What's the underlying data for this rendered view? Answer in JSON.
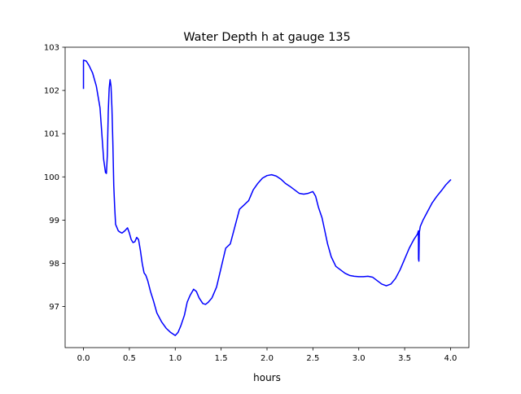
{
  "chart_data": {
    "type": "line",
    "title": "Water Depth h at gauge 135",
    "xlabel": "hours",
    "ylabel": "",
    "xlim": [
      -0.2,
      4.2
    ],
    "ylim": [
      96.05,
      103.0
    ],
    "xticks": [
      0.0,
      0.5,
      1.0,
      1.5,
      2.0,
      2.5,
      3.0,
      3.5,
      4.0
    ],
    "xtick_labels": [
      "0.0",
      "0.5",
      "1.0",
      "1.5",
      "2.0",
      "2.5",
      "3.0",
      "3.5",
      "4.0"
    ],
    "yticks": [
      97,
      98,
      99,
      100,
      101,
      102,
      103
    ],
    "ytick_labels": [
      "97",
      "98",
      "99",
      "100",
      "101",
      "102",
      "103"
    ],
    "grid": false,
    "series": [
      {
        "color": "#0000ff",
        "x": [
          0.0,
          0.0,
          0.03,
          0.06,
          0.1,
          0.14,
          0.18,
          0.2,
          0.22,
          0.24,
          0.25,
          0.26,
          0.27,
          0.28,
          0.29,
          0.3,
          0.31,
          0.32,
          0.33,
          0.34,
          0.35,
          0.36,
          0.37,
          0.38,
          0.4,
          0.42,
          0.45,
          0.48,
          0.5,
          0.52,
          0.54,
          0.56,
          0.58,
          0.6,
          0.62,
          0.64,
          0.66,
          0.68,
          0.7,
          0.73,
          0.76,
          0.8,
          0.85,
          0.9,
          0.95,
          1.0,
          1.03,
          1.06,
          1.1,
          1.13,
          1.16,
          1.2,
          1.23,
          1.26,
          1.3,
          1.33,
          1.36,
          1.4,
          1.45,
          1.5,
          1.55,
          1.6,
          1.65,
          1.7,
          1.75,
          1.8,
          1.85,
          1.9,
          1.95,
          2.0,
          2.05,
          2.1,
          2.15,
          2.2,
          2.25,
          2.3,
          2.35,
          2.4,
          2.45,
          2.5,
          2.53,
          2.56,
          2.6,
          2.63,
          2.66,
          2.7,
          2.75,
          2.8,
          2.85,
          2.9,
          2.95,
          3.0,
          3.05,
          3.1,
          3.15,
          3.2,
          3.25,
          3.3,
          3.35,
          3.4,
          3.45,
          3.5,
          3.55,
          3.6,
          3.64,
          3.65,
          3.651,
          3.655,
          3.66,
          3.67,
          3.7,
          3.75,
          3.8,
          3.85,
          3.9,
          3.95,
          4.0
        ],
        "y": [
          102.05,
          102.7,
          102.68,
          102.58,
          102.4,
          102.1,
          101.6,
          101.0,
          100.4,
          100.1,
          100.08,
          100.5,
          101.5,
          102.05,
          102.25,
          102.1,
          101.6,
          100.8,
          99.8,
          99.3,
          98.9,
          98.85,
          98.8,
          98.75,
          98.72,
          98.7,
          98.75,
          98.82,
          98.7,
          98.55,
          98.48,
          98.5,
          98.6,
          98.55,
          98.3,
          98.0,
          97.78,
          97.72,
          97.6,
          97.35,
          97.15,
          96.85,
          96.65,
          96.5,
          96.4,
          96.33,
          96.4,
          96.55,
          96.8,
          97.1,
          97.25,
          97.4,
          97.35,
          97.2,
          97.07,
          97.05,
          97.1,
          97.2,
          97.45,
          97.9,
          98.35,
          98.45,
          98.85,
          99.25,
          99.35,
          99.45,
          99.7,
          99.85,
          99.97,
          100.03,
          100.05,
          100.02,
          99.95,
          99.85,
          99.78,
          99.7,
          99.62,
          99.6,
          99.62,
          99.66,
          99.55,
          99.3,
          99.05,
          98.75,
          98.45,
          98.15,
          97.93,
          97.85,
          97.77,
          97.72,
          97.7,
          97.69,
          97.69,
          97.7,
          97.68,
          97.6,
          97.52,
          97.48,
          97.52,
          97.65,
          97.85,
          98.1,
          98.35,
          98.55,
          98.68,
          98.75,
          98.1,
          98.05,
          98.72,
          98.85,
          99.0,
          99.2,
          99.4,
          99.55,
          99.68,
          99.82,
          99.93
        ]
      }
    ]
  }
}
